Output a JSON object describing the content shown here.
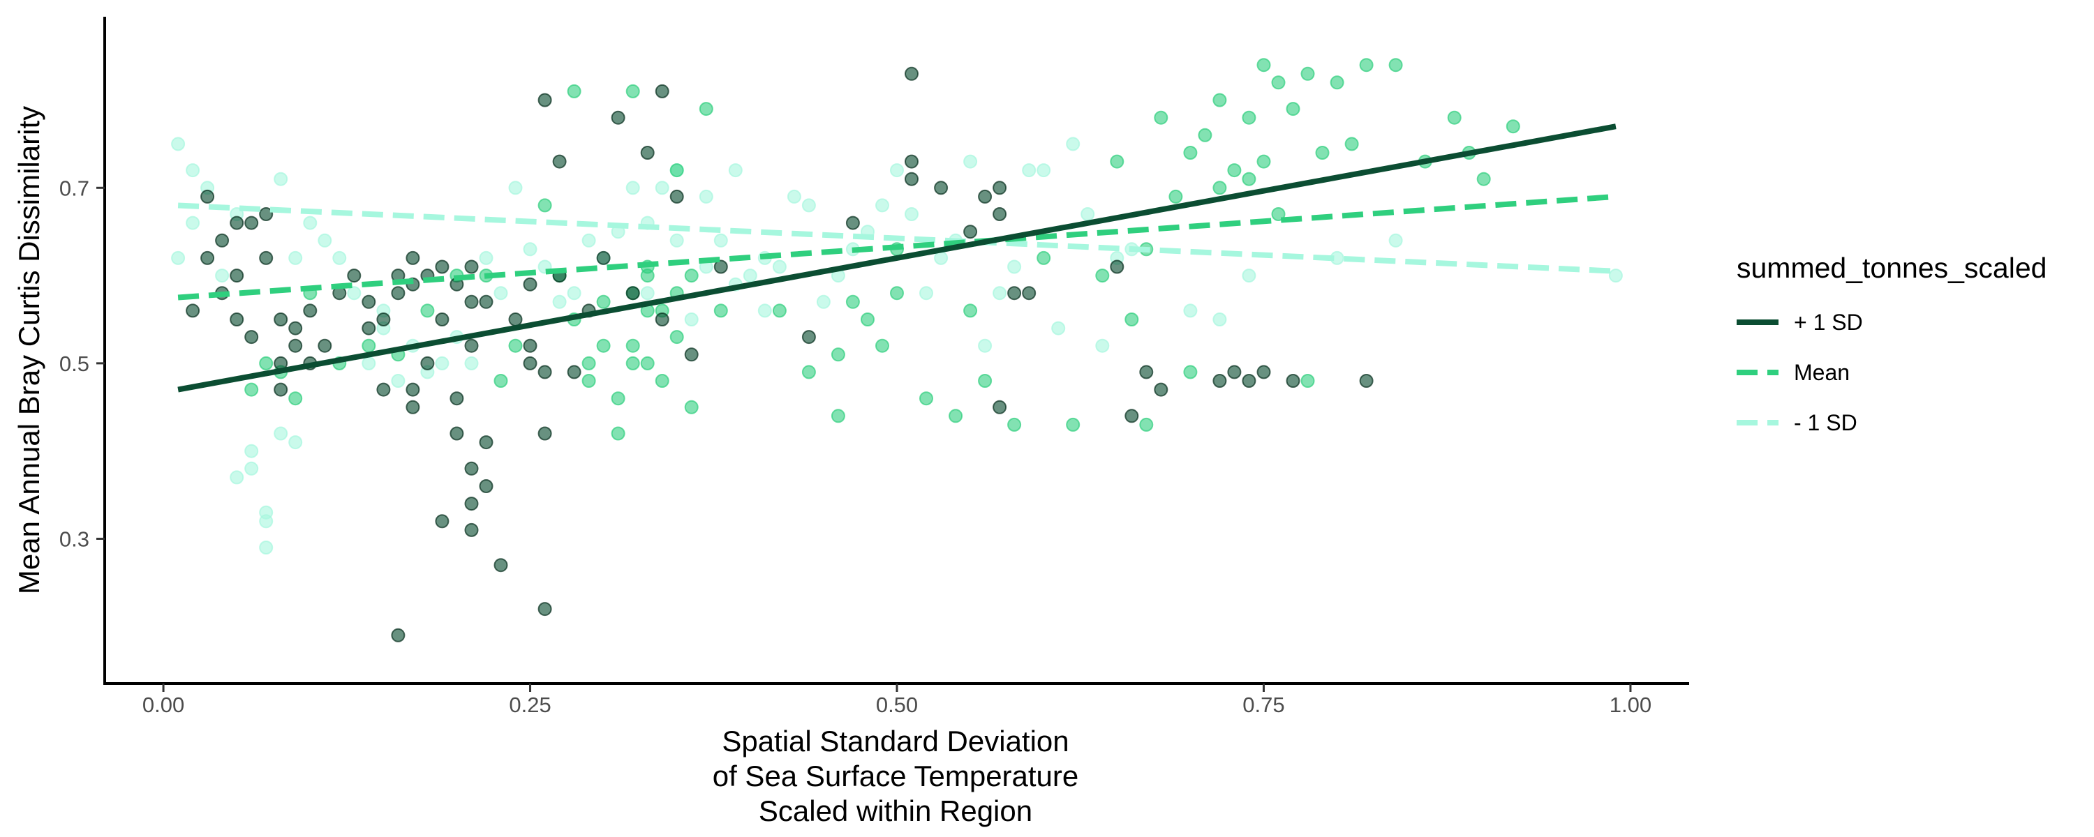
{
  "chart_data": {
    "type": "scatter",
    "title": "",
    "xlabel_lines": [
      "Spatial Standard Deviation",
      "of Sea Surface Temperature",
      "Scaled within Region"
    ],
    "ylabel": "Mean Annual Bray Curtis Dissimilarity",
    "xlim": [
      -0.04,
      1.04
    ],
    "ylim": [
      0.135,
      0.895
    ],
    "x_ticks": [
      0,
      0.25,
      0.5,
      0.75,
      1
    ],
    "x_tick_labels": [
      "0.00",
      "0.25",
      "0.50",
      "0.75",
      "1.00"
    ],
    "y_ticks": [
      0.3,
      0.5,
      0.7
    ],
    "y_tick_labels": [
      "0.3",
      "0.5",
      "0.7"
    ],
    "grid": false,
    "legend": {
      "title": "summed_tonnes_scaled",
      "placement": "right",
      "entries": [
        {
          "label": "+ 1 SD",
          "color": "#0b4d32",
          "dash": "solid"
        },
        {
          "label": "Mean",
          "color": "#2fcf7e",
          "dash": "dashed"
        },
        {
          "label": "- 1 SD",
          "color": "#a6f7de",
          "dash": "dashed"
        }
      ]
    },
    "series": [
      {
        "name": "+ 1 SD",
        "color": "#0b4d32",
        "line": {
          "x": [
            0.01,
            0.99
          ],
          "y": [
            0.47,
            0.77
          ]
        },
        "points": [
          [
            0.02,
            0.56
          ],
          [
            0.03,
            0.62
          ],
          [
            0.03,
            0.69
          ],
          [
            0.04,
            0.58
          ],
          [
            0.04,
            0.64
          ],
          [
            0.05,
            0.66
          ],
          [
            0.05,
            0.55
          ],
          [
            0.05,
            0.6
          ],
          [
            0.06,
            0.53
          ],
          [
            0.06,
            0.66
          ],
          [
            0.07,
            0.62
          ],
          [
            0.07,
            0.67
          ],
          [
            0.08,
            0.5
          ],
          [
            0.08,
            0.55
          ],
          [
            0.08,
            0.47
          ],
          [
            0.09,
            0.52
          ],
          [
            0.09,
            0.54
          ],
          [
            0.1,
            0.5
          ],
          [
            0.1,
            0.56
          ],
          [
            0.11,
            0.52
          ],
          [
            0.12,
            0.58
          ],
          [
            0.13,
            0.6
          ],
          [
            0.14,
            0.57
          ],
          [
            0.14,
            0.54
          ],
          [
            0.15,
            0.47
          ],
          [
            0.15,
            0.55
          ],
          [
            0.16,
            0.6
          ],
          [
            0.16,
            0.58
          ],
          [
            0.17,
            0.62
          ],
          [
            0.17,
            0.59
          ],
          [
            0.17,
            0.45
          ],
          [
            0.17,
            0.47
          ],
          [
            0.18,
            0.6
          ],
          [
            0.18,
            0.5
          ],
          [
            0.19,
            0.61
          ],
          [
            0.19,
            0.55
          ],
          [
            0.19,
            0.32
          ],
          [
            0.2,
            0.42
          ],
          [
            0.2,
            0.59
          ],
          [
            0.2,
            0.46
          ],
          [
            0.21,
            0.34
          ],
          [
            0.21,
            0.57
          ],
          [
            0.21,
            0.38
          ],
          [
            0.21,
            0.31
          ],
          [
            0.21,
            0.61
          ],
          [
            0.21,
            0.52
          ],
          [
            0.22,
            0.57
          ],
          [
            0.22,
            0.41
          ],
          [
            0.22,
            0.36
          ],
          [
            0.23,
            0.27
          ],
          [
            0.24,
            0.55
          ],
          [
            0.25,
            0.52
          ],
          [
            0.25,
            0.59
          ],
          [
            0.25,
            0.5
          ],
          [
            0.26,
            0.42
          ],
          [
            0.26,
            0.22
          ],
          [
            0.26,
            0.49
          ],
          [
            0.26,
            0.8
          ],
          [
            0.27,
            0.73
          ],
          [
            0.27,
            0.6
          ],
          [
            0.28,
            0.49
          ],
          [
            0.29,
            0.56
          ],
          [
            0.3,
            0.62
          ],
          [
            0.31,
            0.78
          ],
          [
            0.32,
            0.58
          ],
          [
            0.33,
            0.74
          ],
          [
            0.34,
            0.55
          ],
          [
            0.34,
            0.81
          ],
          [
            0.35,
            0.69
          ],
          [
            0.36,
            0.51
          ],
          [
            0.16,
            0.19
          ],
          [
            0.38,
            0.61
          ],
          [
            0.44,
            0.53
          ],
          [
            0.47,
            0.66
          ],
          [
            0.51,
            0.71
          ],
          [
            0.51,
            0.73
          ],
          [
            0.51,
            0.83
          ],
          [
            0.53,
            0.7
          ],
          [
            0.55,
            0.65
          ],
          [
            0.56,
            0.69
          ],
          [
            0.57,
            0.7
          ],
          [
            0.57,
            0.67
          ],
          [
            0.57,
            0.45
          ],
          [
            0.58,
            0.58
          ],
          [
            0.59,
            0.58
          ],
          [
            0.65,
            0.61
          ],
          [
            0.66,
            0.44
          ],
          [
            0.67,
            0.49
          ],
          [
            0.68,
            0.47
          ],
          [
            0.72,
            0.48
          ],
          [
            0.73,
            0.49
          ],
          [
            0.74,
            0.48
          ],
          [
            0.75,
            0.49
          ],
          [
            0.77,
            0.48
          ],
          [
            0.82,
            0.48
          ]
        ]
      },
      {
        "name": "Mean",
        "color": "#2fcf7e",
        "line": {
          "x": [
            0.01,
            0.99
          ],
          "y": [
            0.575,
            0.69
          ]
        },
        "points": [
          [
            0.06,
            0.47
          ],
          [
            0.07,
            0.5
          ],
          [
            0.08,
            0.49
          ],
          [
            0.09,
            0.46
          ],
          [
            0.1,
            0.58
          ],
          [
            0.12,
            0.5
          ],
          [
            0.14,
            0.52
          ],
          [
            0.16,
            0.51
          ],
          [
            0.18,
            0.56
          ],
          [
            0.2,
            0.6
          ],
          [
            0.22,
            0.6
          ],
          [
            0.23,
            0.48
          ],
          [
            0.24,
            0.52
          ],
          [
            0.26,
            0.68
          ],
          [
            0.27,
            0.6
          ],
          [
            0.28,
            0.55
          ],
          [
            0.28,
            0.81
          ],
          [
            0.29,
            0.48
          ],
          [
            0.29,
            0.5
          ],
          [
            0.3,
            0.52
          ],
          [
            0.3,
            0.57
          ],
          [
            0.31,
            0.42
          ],
          [
            0.31,
            0.46
          ],
          [
            0.32,
            0.52
          ],
          [
            0.32,
            0.5
          ],
          [
            0.32,
            0.58
          ],
          [
            0.32,
            0.81
          ],
          [
            0.33,
            0.6
          ],
          [
            0.33,
            0.56
          ],
          [
            0.33,
            0.5
          ],
          [
            0.33,
            0.61
          ],
          [
            0.34,
            0.56
          ],
          [
            0.34,
            0.48
          ],
          [
            0.35,
            0.53
          ],
          [
            0.35,
            0.58
          ],
          [
            0.35,
            0.72
          ],
          [
            0.36,
            0.45
          ],
          [
            0.36,
            0.6
          ],
          [
            0.37,
            0.79
          ],
          [
            0.38,
            0.56
          ],
          [
            0.42,
            0.56
          ],
          [
            0.44,
            0.49
          ],
          [
            0.46,
            0.51
          ],
          [
            0.46,
            0.44
          ],
          [
            0.47,
            0.57
          ],
          [
            0.48,
            0.55
          ],
          [
            0.49,
            0.52
          ],
          [
            0.5,
            0.58
          ],
          [
            0.5,
            0.63
          ],
          [
            0.52,
            0.46
          ],
          [
            0.54,
            0.44
          ],
          [
            0.55,
            0.56
          ],
          [
            0.56,
            0.48
          ],
          [
            0.58,
            0.43
          ],
          [
            0.6,
            0.62
          ],
          [
            0.62,
            0.43
          ],
          [
            0.64,
            0.6
          ],
          [
            0.65,
            0.73
          ],
          [
            0.66,
            0.55
          ],
          [
            0.67,
            0.43
          ],
          [
            0.67,
            0.63
          ],
          [
            0.68,
            0.78
          ],
          [
            0.69,
            0.69
          ],
          [
            0.7,
            0.74
          ],
          [
            0.7,
            0.49
          ],
          [
            0.71,
            0.76
          ],
          [
            0.72,
            0.8
          ],
          [
            0.72,
            0.7
          ],
          [
            0.73,
            0.72
          ],
          [
            0.74,
            0.78
          ],
          [
            0.74,
            0.71
          ],
          [
            0.75,
            0.84
          ],
          [
            0.75,
            0.73
          ],
          [
            0.76,
            0.67
          ],
          [
            0.76,
            0.82
          ],
          [
            0.77,
            0.79
          ],
          [
            0.78,
            0.83
          ],
          [
            0.78,
            0.48
          ],
          [
            0.79,
            0.74
          ],
          [
            0.8,
            0.82
          ],
          [
            0.81,
            0.75
          ],
          [
            0.82,
            0.84
          ],
          [
            0.84,
            0.84
          ],
          [
            0.86,
            0.73
          ],
          [
            0.88,
            0.78
          ],
          [
            0.89,
            0.74
          ],
          [
            0.9,
            0.71
          ],
          [
            0.92,
            0.77
          ]
        ]
      },
      {
        "name": "- 1 SD",
        "color": "#a6f7de",
        "line": {
          "x": [
            0.01,
            0.99
          ],
          "y": [
            0.68,
            0.605
          ]
        },
        "points": [
          [
            0.01,
            0.62
          ],
          [
            0.01,
            0.75
          ],
          [
            0.02,
            0.72
          ],
          [
            0.02,
            0.66
          ],
          [
            0.03,
            0.7
          ],
          [
            0.04,
            0.6
          ],
          [
            0.05,
            0.67
          ],
          [
            0.05,
            0.37
          ],
          [
            0.06,
            0.4
          ],
          [
            0.06,
            0.38
          ],
          [
            0.07,
            0.32
          ],
          [
            0.07,
            0.33
          ],
          [
            0.07,
            0.29
          ],
          [
            0.08,
            0.42
          ],
          [
            0.08,
            0.71
          ],
          [
            0.09,
            0.62
          ],
          [
            0.09,
            0.41
          ],
          [
            0.1,
            0.66
          ],
          [
            0.11,
            0.64
          ],
          [
            0.12,
            0.62
          ],
          [
            0.13,
            0.58
          ],
          [
            0.14,
            0.5
          ],
          [
            0.15,
            0.56
          ],
          [
            0.15,
            0.54
          ],
          [
            0.16,
            0.48
          ],
          [
            0.17,
            0.52
          ],
          [
            0.18,
            0.49
          ],
          [
            0.19,
            0.5
          ],
          [
            0.2,
            0.53
          ],
          [
            0.21,
            0.5
          ],
          [
            0.22,
            0.62
          ],
          [
            0.23,
            0.58
          ],
          [
            0.24,
            0.7
          ],
          [
            0.25,
            0.63
          ],
          [
            0.26,
            0.61
          ],
          [
            0.27,
            0.57
          ],
          [
            0.28,
            0.58
          ],
          [
            0.29,
            0.64
          ],
          [
            0.3,
            0.62
          ],
          [
            0.31,
            0.65
          ],
          [
            0.32,
            0.7
          ],
          [
            0.33,
            0.66
          ],
          [
            0.33,
            0.58
          ],
          [
            0.34,
            0.7
          ],
          [
            0.35,
            0.64
          ],
          [
            0.35,
            0.72
          ],
          [
            0.36,
            0.55
          ],
          [
            0.37,
            0.61
          ],
          [
            0.37,
            0.69
          ],
          [
            0.38,
            0.64
          ],
          [
            0.39,
            0.59
          ],
          [
            0.39,
            0.72
          ],
          [
            0.4,
            0.6
          ],
          [
            0.41,
            0.56
          ],
          [
            0.41,
            0.62
          ],
          [
            0.42,
            0.61
          ],
          [
            0.43,
            0.69
          ],
          [
            0.44,
            0.68
          ],
          [
            0.45,
            0.57
          ],
          [
            0.46,
            0.6
          ],
          [
            0.47,
            0.63
          ],
          [
            0.48,
            0.65
          ],
          [
            0.49,
            0.68
          ],
          [
            0.5,
            0.72
          ],
          [
            0.51,
            0.67
          ],
          [
            0.52,
            0.58
          ],
          [
            0.53,
            0.62
          ],
          [
            0.54,
            0.64
          ],
          [
            0.55,
            0.73
          ],
          [
            0.56,
            0.52
          ],
          [
            0.57,
            0.58
          ],
          [
            0.58,
            0.61
          ],
          [
            0.59,
            0.72
          ],
          [
            0.6,
            0.72
          ],
          [
            0.61,
            0.54
          ],
          [
            0.62,
            0.75
          ],
          [
            0.63,
            0.67
          ],
          [
            0.64,
            0.52
          ],
          [
            0.65,
            0.62
          ],
          [
            0.66,
            0.63
          ],
          [
            0.7,
            0.56
          ],
          [
            0.72,
            0.55
          ],
          [
            0.74,
            0.6
          ],
          [
            0.8,
            0.62
          ],
          [
            0.84,
            0.64
          ],
          [
            0.99,
            0.6
          ]
        ]
      }
    ]
  }
}
